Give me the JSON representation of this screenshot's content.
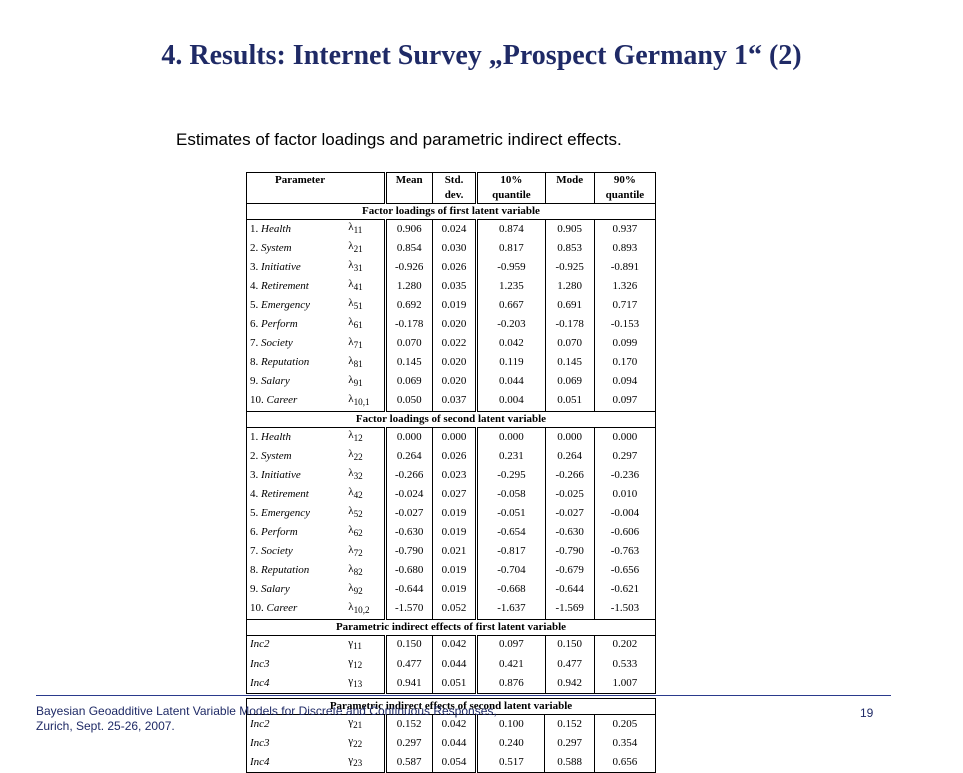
{
  "title": "4. Results:  Internet Survey „Prospect Germany 1“ (2)",
  "subtitle": "Estimates of factor loadings and parametric indirect effects.",
  "table": {
    "headers": {
      "parameter": "Parameter",
      "mean": "Mean",
      "sd_1": "Std.",
      "sd_2": "dev.",
      "q10_1": "10%",
      "q10_2": "quantile",
      "mode": "Mode",
      "q90_1": "90%",
      "q90_2": "quantile"
    },
    "sections": [
      {
        "title": "Factor loadings of first latent variable",
        "rows": [
          {
            "num": "1.",
            "name": "Health",
            "sym": "λ",
            "sub": "11",
            "mean": "0.906",
            "sd": "0.024",
            "q10": "0.874",
            "mode": "0.905",
            "q90": "0.937"
          },
          {
            "num": "2.",
            "name": "System",
            "sym": "λ",
            "sub": "21",
            "mean": "0.854",
            "sd": "0.030",
            "q10": "0.817",
            "mode": "0.853",
            "q90": "0.893"
          },
          {
            "num": "3.",
            "name": "Initiative",
            "sym": "λ",
            "sub": "31",
            "mean": "-0.926",
            "sd": "0.026",
            "q10": "-0.959",
            "mode": "-0.925",
            "q90": "-0.891"
          },
          {
            "num": "4.",
            "name": "Retirement",
            "sym": "λ",
            "sub": "41",
            "mean": "1.280",
            "sd": "0.035",
            "q10": "1.235",
            "mode": "1.280",
            "q90": "1.326"
          },
          {
            "num": "5.",
            "name": "Emergency",
            "sym": "λ",
            "sub": "51",
            "mean": "0.692",
            "sd": "0.019",
            "q10": "0.667",
            "mode": "0.691",
            "q90": "0.717"
          },
          {
            "num": "6.",
            "name": "Perform",
            "sym": "λ",
            "sub": "61",
            "mean": "-0.178",
            "sd": "0.020",
            "q10": "-0.203",
            "mode": "-0.178",
            "q90": "-0.153"
          },
          {
            "num": "7.",
            "name": "Society",
            "sym": "λ",
            "sub": "71",
            "mean": "0.070",
            "sd": "0.022",
            "q10": "0.042",
            "mode": "0.070",
            "q90": "0.099"
          },
          {
            "num": "8.",
            "name": "Reputation",
            "sym": "λ",
            "sub": "81",
            "mean": "0.145",
            "sd": "0.020",
            "q10": "0.119",
            "mode": "0.145",
            "q90": "0.170"
          },
          {
            "num": "9.",
            "name": "Salary",
            "sym": "λ",
            "sub": "91",
            "mean": "0.069",
            "sd": "0.020",
            "q10": "0.044",
            "mode": "0.069",
            "q90": "0.094"
          },
          {
            "num": "10.",
            "name": "Career",
            "sym": "λ",
            "sub": "10,1",
            "mean": "0.050",
            "sd": "0.037",
            "q10": "0.004",
            "mode": "0.051",
            "q90": "0.097"
          }
        ]
      },
      {
        "title": "Factor loadings of second latent variable",
        "rows": [
          {
            "num": "1.",
            "name": "Health",
            "sym": "λ",
            "sub": "12",
            "mean": "0.000",
            "sd": "0.000",
            "q10": "0.000",
            "mode": "0.000",
            "q90": "0.000"
          },
          {
            "num": "2.",
            "name": "System",
            "sym": "λ",
            "sub": "22",
            "mean": "0.264",
            "sd": "0.026",
            "q10": "0.231",
            "mode": "0.264",
            "q90": "0.297"
          },
          {
            "num": "3.",
            "name": "Initiative",
            "sym": "λ",
            "sub": "32",
            "mean": "-0.266",
            "sd": "0.023",
            "q10": "-0.295",
            "mode": "-0.266",
            "q90": "-0.236"
          },
          {
            "num": "4.",
            "name": "Retirement",
            "sym": "λ",
            "sub": "42",
            "mean": "-0.024",
            "sd": "0.027",
            "q10": "-0.058",
            "mode": "-0.025",
            "q90": "0.010"
          },
          {
            "num": "5.",
            "name": "Emergency",
            "sym": "λ",
            "sub": "52",
            "mean": "-0.027",
            "sd": "0.019",
            "q10": "-0.051",
            "mode": "-0.027",
            "q90": "-0.004"
          },
          {
            "num": "6.",
            "name": "Perform",
            "sym": "λ",
            "sub": "62",
            "mean": "-0.630",
            "sd": "0.019",
            "q10": "-0.654",
            "mode": "-0.630",
            "q90": "-0.606"
          },
          {
            "num": "7.",
            "name": "Society",
            "sym": "λ",
            "sub": "72",
            "mean": "-0.790",
            "sd": "0.021",
            "q10": "-0.817",
            "mode": "-0.790",
            "q90": "-0.763"
          },
          {
            "num": "8.",
            "name": "Reputation",
            "sym": "λ",
            "sub": "82",
            "mean": "-0.680",
            "sd": "0.019",
            "q10": "-0.704",
            "mode": "-0.679",
            "q90": "-0.656"
          },
          {
            "num": "9.",
            "name": "Salary",
            "sym": "λ",
            "sub": "92",
            "mean": "-0.644",
            "sd": "0.019",
            "q10": "-0.668",
            "mode": "-0.644",
            "q90": "-0.621"
          },
          {
            "num": "10.",
            "name": "Career",
            "sym": "λ",
            "sub": "10,2",
            "mean": "-1.570",
            "sd": "0.052",
            "q10": "-1.637",
            "mode": "-1.569",
            "q90": "-1.503"
          }
        ]
      },
      {
        "title": "Parametric indirect effects of first latent variable",
        "rows": [
          {
            "num": "",
            "name": "Inc2",
            "sym": "γ",
            "sub": "11",
            "mean": "0.150",
            "sd": "0.042",
            "q10": "0.097",
            "mode": "0.150",
            "q90": "0.202"
          },
          {
            "num": "",
            "name": "Inc3",
            "sym": "γ",
            "sub": "12",
            "mean": "0.477",
            "sd": "0.044",
            "q10": "0.421",
            "mode": "0.477",
            "q90": "0.533"
          },
          {
            "num": "",
            "name": "Inc4",
            "sym": "γ",
            "sub": "13",
            "mean": "0.941",
            "sd": "0.051",
            "q10": "0.876",
            "mode": "0.942",
            "q90": "1.007"
          }
        ]
      },
      {
        "title": "Parametric indirect effects of second latent variable",
        "rows": [
          {
            "num": "",
            "name": "Inc2",
            "sym": "γ",
            "sub": "21",
            "mean": "0.152",
            "sd": "0.042",
            "q10": "0.100",
            "mode": "0.152",
            "q90": "0.205"
          },
          {
            "num": "",
            "name": "Inc3",
            "sym": "γ",
            "sub": "22",
            "mean": "0.297",
            "sd": "0.044",
            "q10": "0.240",
            "mode": "0.297",
            "q90": "0.354"
          },
          {
            "num": "",
            "name": "Inc4",
            "sym": "γ",
            "sub": "23",
            "mean": "0.587",
            "sd": "0.054",
            "q10": "0.517",
            "mode": "0.588",
            "q90": "0.656"
          }
        ]
      }
    ]
  },
  "footer": {
    "line1": "Bayesian Geoadditive Latent Variable Models for Discrete and Continuous Responses,",
    "line2": "Zurich, Sept. 25-26, 2007.",
    "page_number": "19"
  },
  "colors": {
    "title": "#1f2a66",
    "footer_rule": "#2a3a8c"
  }
}
